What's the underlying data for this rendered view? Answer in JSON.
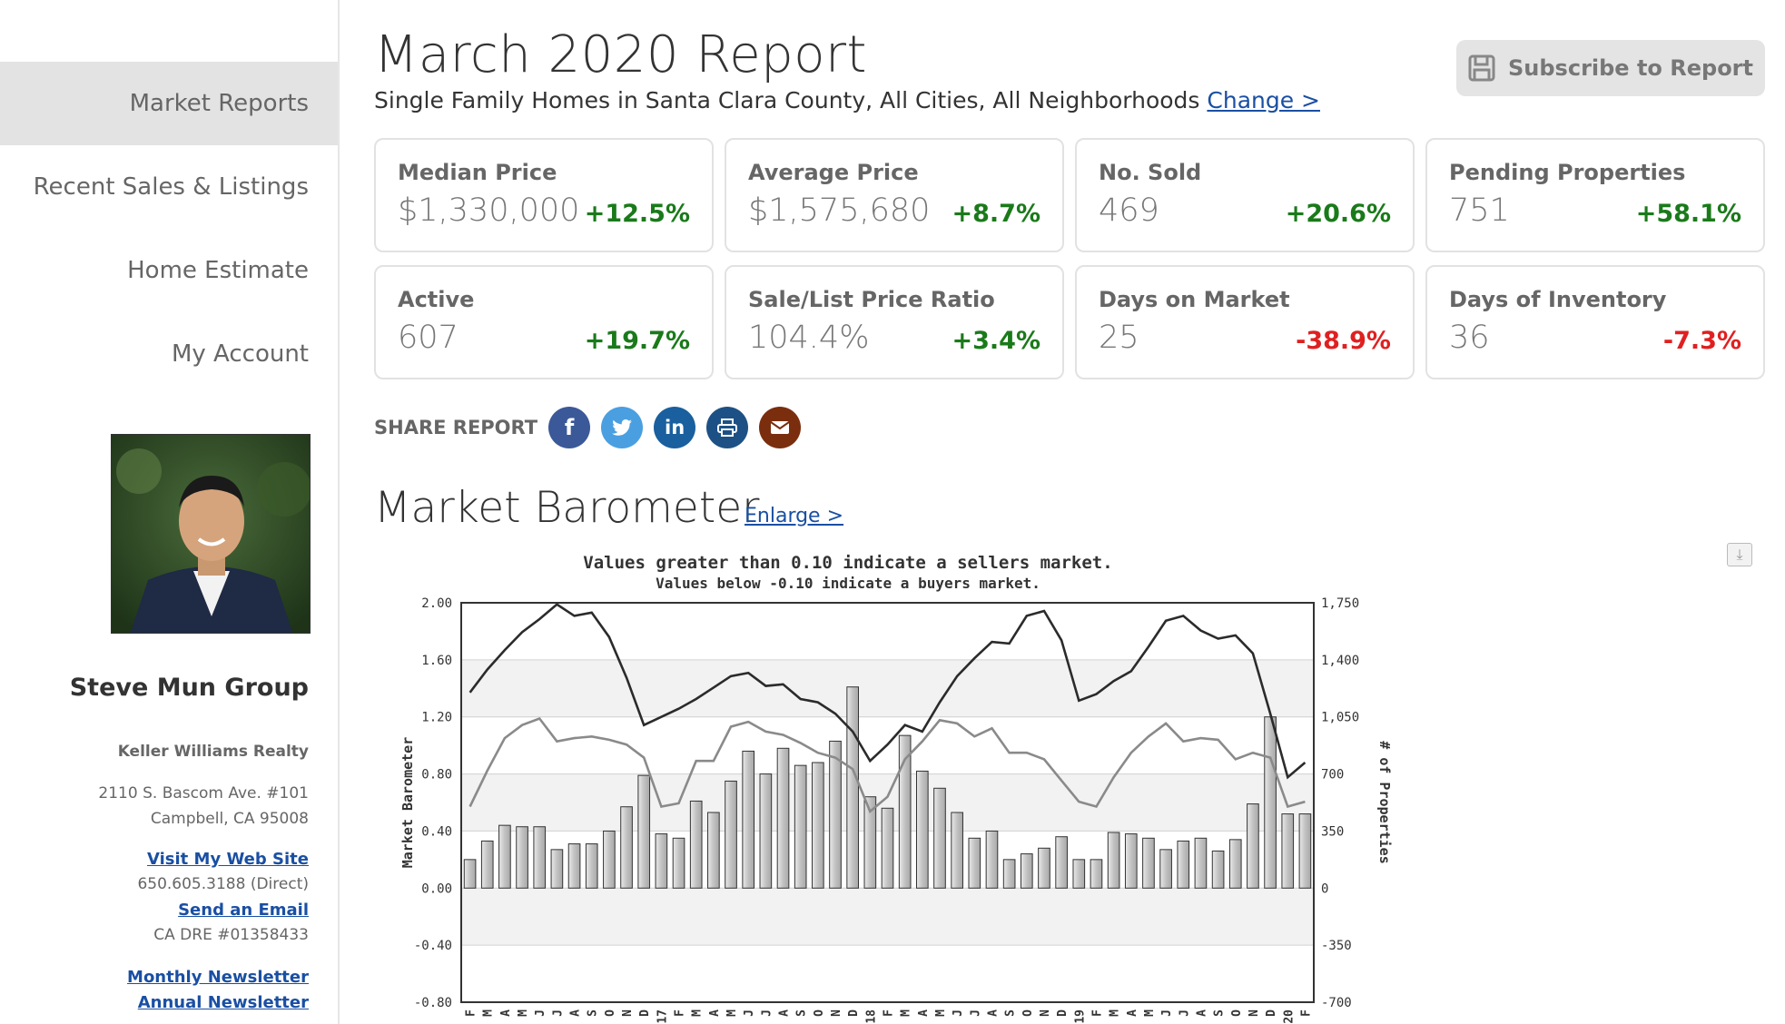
{
  "sidebar": {
    "nav": [
      {
        "label": "Market Reports",
        "active": true
      },
      {
        "label": "Recent Sales & Listings",
        "active": false
      },
      {
        "label": "Home Estimate",
        "active": false
      },
      {
        "label": "My Account",
        "active": false
      }
    ],
    "agent": {
      "name": "Steve Mun Group",
      "company": "Keller Williams Realty",
      "address1": "2110 S. Bascom Ave. #101",
      "address2": "Campbell, CA 95008",
      "website_link": "Visit My Web Site",
      "phone": "650.605.3188  (Direct)",
      "email_link": "Send an Email",
      "dre": "CA DRE #01358433",
      "monthly_newsletter": "Monthly Newsletter",
      "annual_newsletter": "Annual Newsletter"
    }
  },
  "header": {
    "title": "March 2020 Report",
    "subtitle": "Single Family Homes in Santa Clara County, All Cities, All Neighborhoods",
    "change_link": "Change >",
    "subscribe_label": "Subscribe to Report"
  },
  "stats": [
    {
      "label": "Median Price",
      "value": "$1,330,000",
      "change": "+12.5%",
      "trend": "pos"
    },
    {
      "label": "Average Price",
      "value": "$1,575,680",
      "change": "+8.7%",
      "trend": "pos"
    },
    {
      "label": "No. Sold",
      "value": "469",
      "change": "+20.6%",
      "trend": "pos"
    },
    {
      "label": "Pending Properties",
      "value": "751",
      "change": "+58.1%",
      "trend": "pos"
    },
    {
      "label": "Active",
      "value": "607",
      "change": "+19.7%",
      "trend": "pos"
    },
    {
      "label": "Sale/List Price Ratio",
      "value": "104.4%",
      "change": "+3.4%",
      "trend": "pos"
    },
    {
      "label": "Days on Market",
      "value": "25",
      "change": "-38.9%",
      "trend": "neg"
    },
    {
      "label": "Days of Inventory",
      "value": "36",
      "change": "-7.3%",
      "trend": "neg"
    }
  ],
  "share": {
    "label": "SHARE REPORT",
    "buttons": [
      {
        "icon": "facebook-icon",
        "glyph": "f",
        "color": "#3b5998"
      },
      {
        "icon": "twitter-icon",
        "glyph": "t",
        "color": "#4a9fe0"
      },
      {
        "icon": "linkedin-icon",
        "glyph": "in",
        "color": "#1a5f9e"
      },
      {
        "icon": "print-icon",
        "glyph": "⎙",
        "color": "#1d5185"
      },
      {
        "icon": "email-icon",
        "glyph": "✉",
        "color": "#7a2e0e"
      }
    ]
  },
  "barometer": {
    "heading": "Market Barometer",
    "enlarge_link": "Enlarge >",
    "download_icon": "download-icon"
  },
  "chart_data": {
    "type": "bar",
    "title": "Values greater than 0.10 indicate a sellers market.",
    "subtitle": "Values below -0.10 indicate a buyers market.",
    "ylabel": "Market Barometer",
    "y2label": "# of Properties",
    "ylim": [
      -0.8,
      2.0
    ],
    "y2lim": [
      -700,
      1750
    ],
    "yticks": [
      "2.00",
      "1.60",
      "1.20",
      "0.80",
      "0.40",
      "0.00",
      "-0.40",
      "-0.80"
    ],
    "y2ticks": [
      "1,750",
      "1,400",
      "1,050",
      "700",
      "350",
      "0",
      "-350",
      "-700"
    ],
    "grid": true,
    "categories": [
      "F",
      "M",
      "A",
      "M",
      "J",
      "J",
      "A",
      "S",
      "O",
      "N",
      "D",
      "17",
      "F",
      "M",
      "A",
      "M",
      "J",
      "J",
      "A",
      "S",
      "O",
      "N",
      "D",
      "18",
      "F",
      "M",
      "A",
      "M",
      "J",
      "J",
      "A",
      "S",
      "O",
      "N",
      "D",
      "19",
      "F",
      "M",
      "A",
      "M",
      "J",
      "J",
      "A",
      "S",
      "O",
      "N",
      "D",
      "20",
      "F"
    ],
    "bars": [
      0.2,
      0.33,
      0.44,
      0.43,
      0.43,
      0.27,
      0.31,
      0.31,
      0.4,
      0.57,
      0.79,
      0.38,
      0.35,
      0.61,
      0.53,
      0.75,
      0.96,
      0.8,
      0.98,
      0.86,
      0.88,
      1.03,
      1.41,
      0.64,
      0.56,
      1.07,
      0.82,
      0.7,
      0.53,
      0.35,
      0.4,
      0.2,
      0.24,
      0.28,
      0.36,
      0.2,
      0.2,
      0.39,
      0.38,
      0.35,
      0.27,
      0.33,
      0.35,
      0.26,
      0.34,
      0.59,
      1.2,
      0.52,
      0.52
    ],
    "series": [
      {
        "values": [
          1200,
          1340,
          1460,
          1570,
          1650,
          1740,
          1670,
          1690,
          1540,
          1290,
          1000,
          1050,
          1100,
          1160,
          1230,
          1300,
          1320,
          1240,
          1250,
          1160,
          1140,
          1070,
          960,
          780,
          880,
          1000,
          960,
          1140,
          1300,
          1410,
          1510,
          1500,
          1670,
          1700,
          1520,
          1150,
          1190,
          1270,
          1330,
          1480,
          1640,
          1670,
          1580,
          1530,
          1550,
          1440,
          1070,
          680,
          770
        ]
      },
      {
        "values": [
          500,
          720,
          920,
          1000,
          1040,
          900,
          920,
          930,
          910,
          880,
          800,
          500,
          520,
          780,
          780,
          990,
          1020,
          960,
          940,
          890,
          830,
          800,
          730,
          470,
          560,
          790,
          900,
          1030,
          1010,
          930,
          980,
          830,
          830,
          790,
          660,
          530,
          500,
          680,
          830,
          930,
          1010,
          900,
          920,
          910,
          790,
          830,
          800,
          500,
          530
        ]
      }
    ]
  }
}
